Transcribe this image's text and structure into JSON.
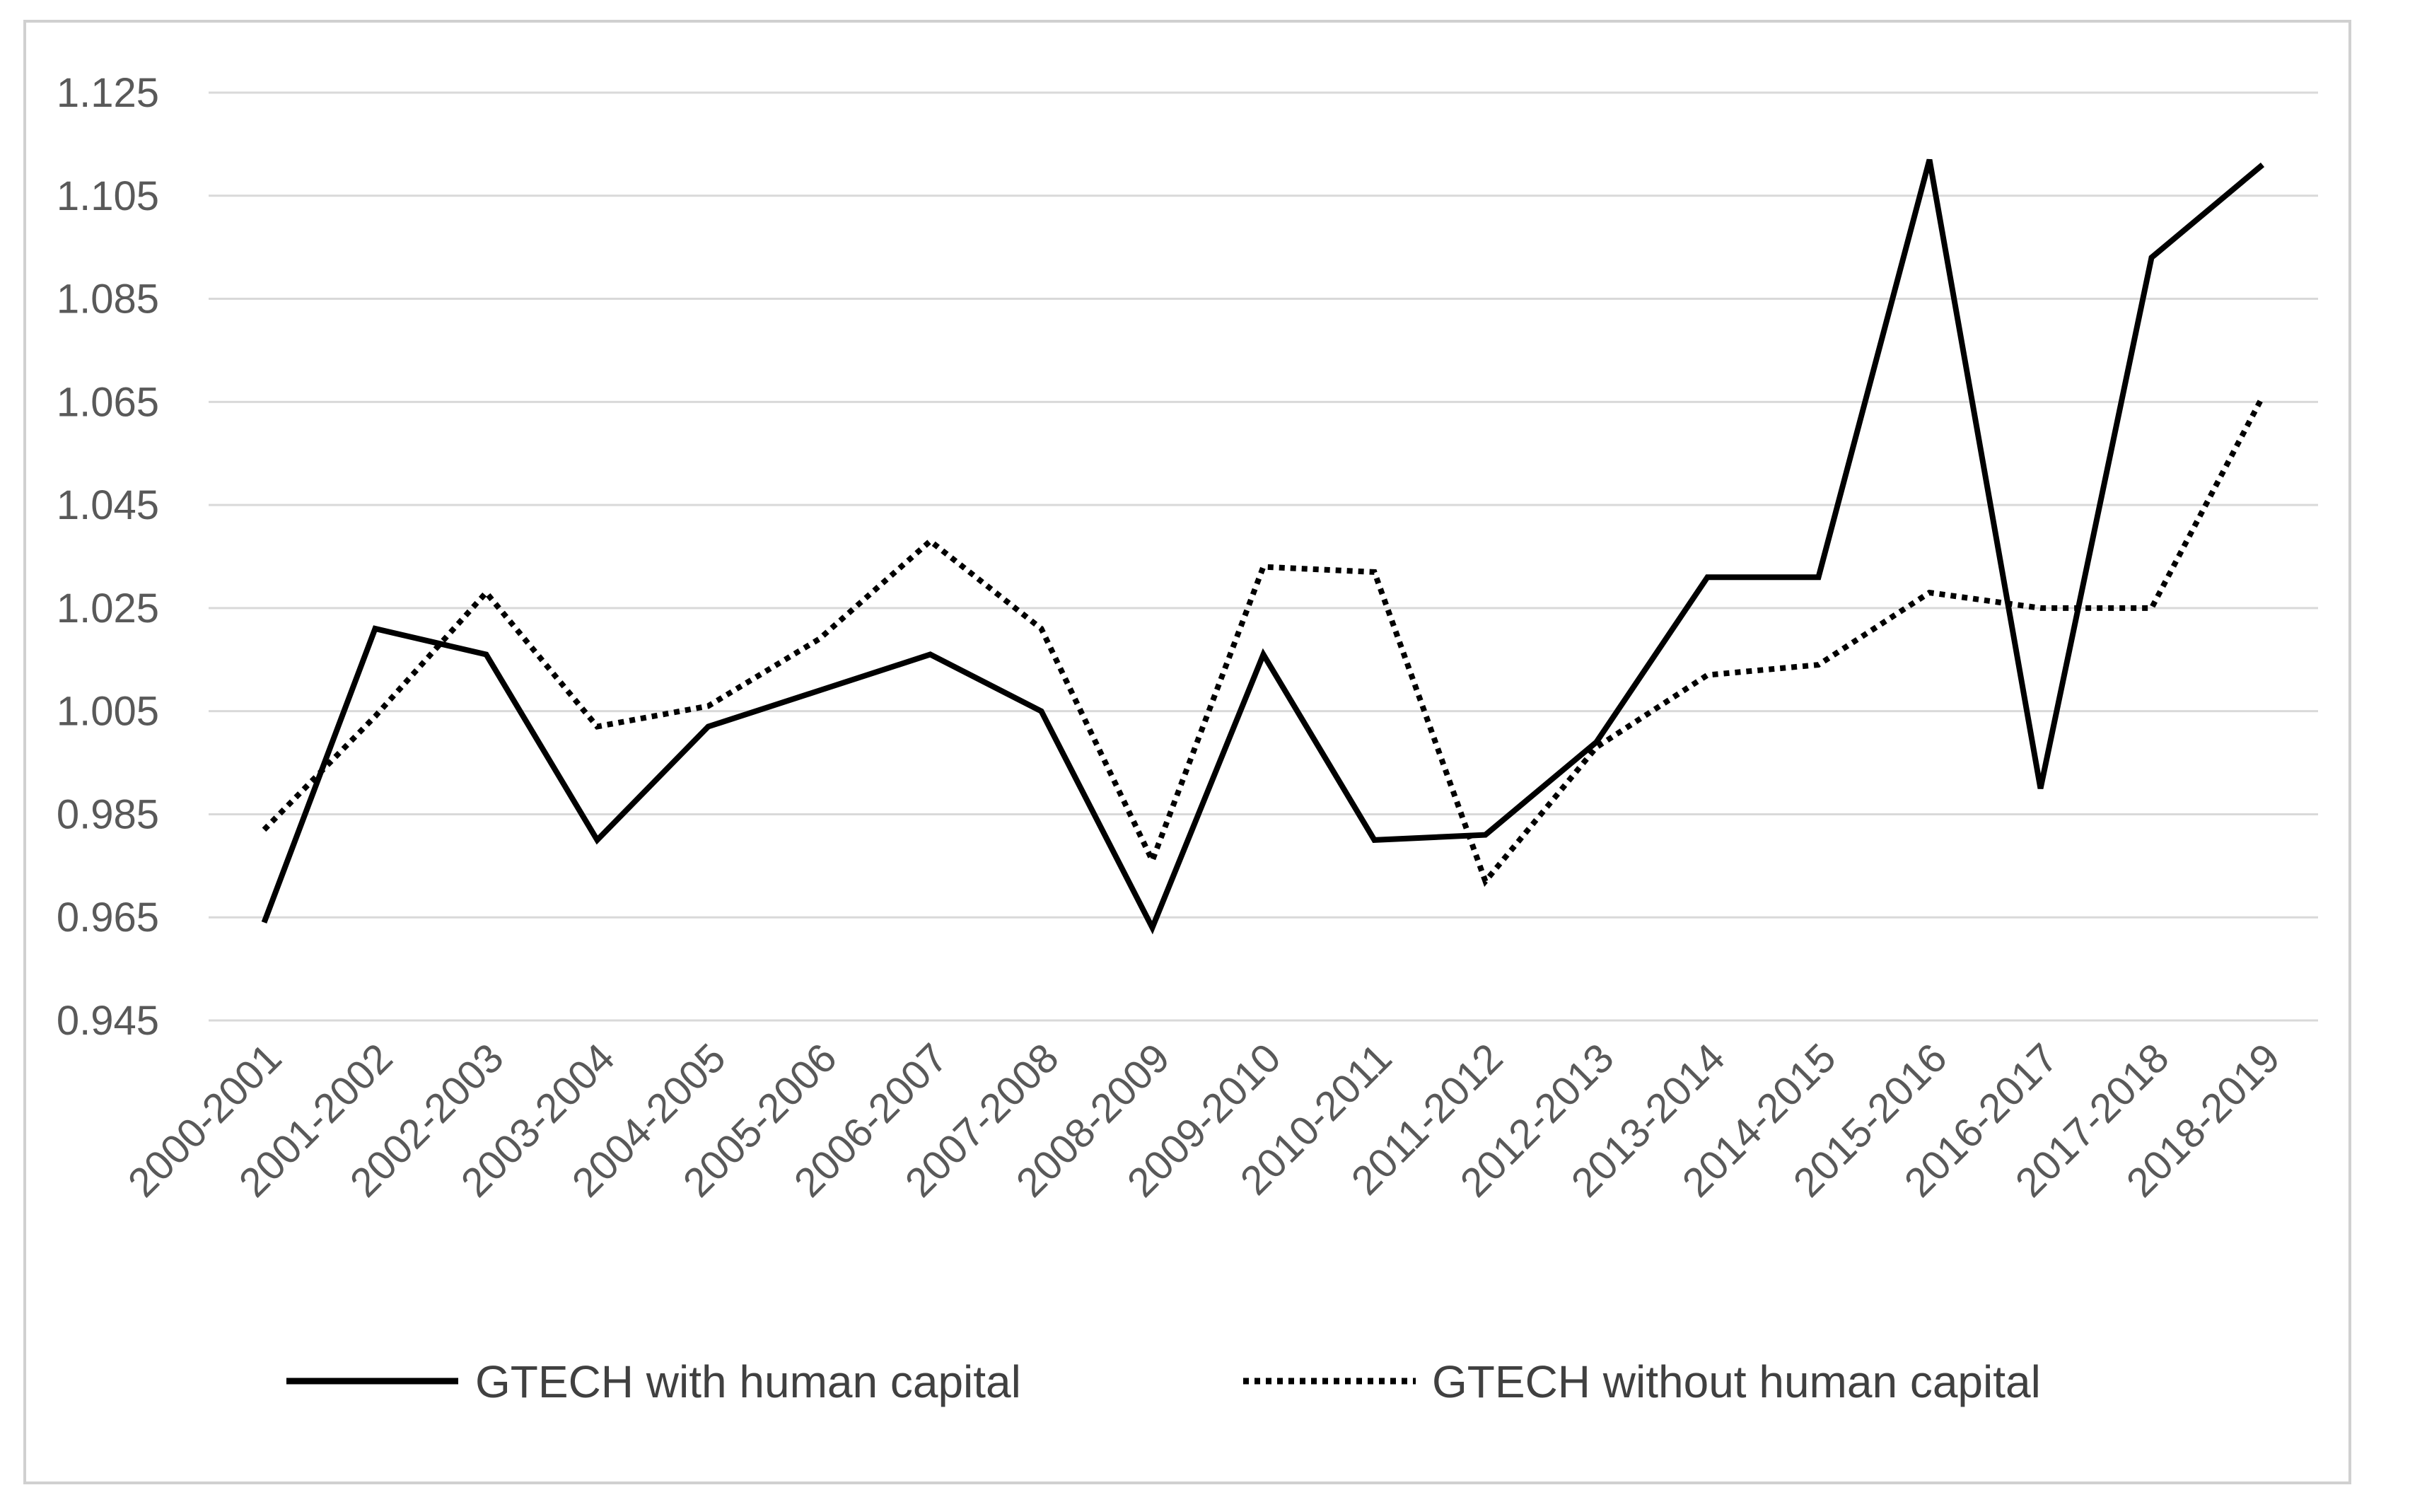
{
  "chart_data": {
    "type": "line",
    "title": "",
    "xlabel": "",
    "ylabel": "",
    "categories": [
      "2000-2001",
      "2001-2002",
      "2002-2003",
      "2003-2004",
      "2004-2005",
      "2005-2006",
      "2006-2007",
      "2007-2008",
      "2008-2009",
      "2009-2010",
      "2010-2011",
      "2011-2012",
      "2012-2013",
      "2013-2014",
      "2014-2015",
      "2015-2016",
      "2016-2017",
      "2017-2018",
      "2018-2019"
    ],
    "ylim": [
      0.945,
      1.125
    ],
    "yticks": [
      "0.945",
      "0.965",
      "0.985",
      "1.005",
      "1.025",
      "1.045",
      "1.065",
      "1.085",
      "1.105",
      "1.125"
    ],
    "grid": "horizontal",
    "legend_position": "bottom",
    "series": [
      {
        "name": "GTECH with human capital",
        "style": "solid",
        "color": "#000000",
        "values": [
          0.964,
          1.021,
          1.016,
          0.98,
          1.002,
          1.009,
          1.016,
          1.005,
          0.963,
          1.016,
          0.98,
          0.981,
          0.999,
          1.031,
          1.031,
          1.112,
          0.99,
          1.093,
          1.111
        ]
      },
      {
        "name": "GTECH without human capital",
        "style": "dotted",
        "color": "#000000",
        "values": [
          0.982,
          1.004,
          1.028,
          1.002,
          1.006,
          1.019,
          1.038,
          1.021,
          0.976,
          1.033,
          1.032,
          0.972,
          0.998,
          1.012,
          1.014,
          1.028,
          1.025,
          1.025,
          1.066
        ]
      }
    ]
  }
}
